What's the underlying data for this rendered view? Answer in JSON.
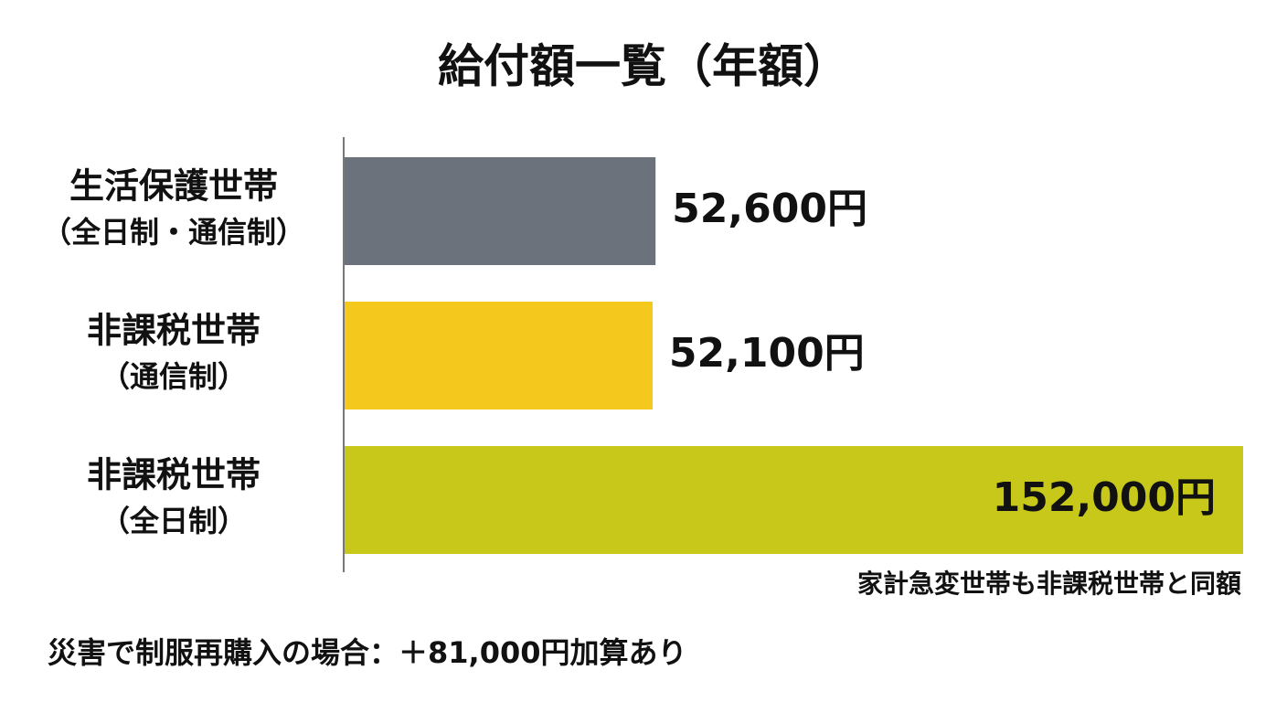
{
  "chart_data": {
    "type": "hbar",
    "title": "給付額一覧（年額）",
    "categories": [
      [
        "生活保護世帯",
        "（全日制・通信制）"
      ],
      [
        "非課税世帯",
        "（通信制）"
      ],
      [
        "非課税世帯",
        "（全日制）"
      ]
    ],
    "values": [
      52600,
      52100,
      152000
    ],
    "value_labels": [
      "52,600円",
      "52,100円",
      "152,000円"
    ],
    "colors": [
      "#6b727c",
      "#f4c81c",
      "#c8c81a"
    ],
    "annotation": "家計急変世帯も非課税世帯と同額",
    "footnote": "災害で制服再購入の場合：＋81,000円加算あり"
  }
}
